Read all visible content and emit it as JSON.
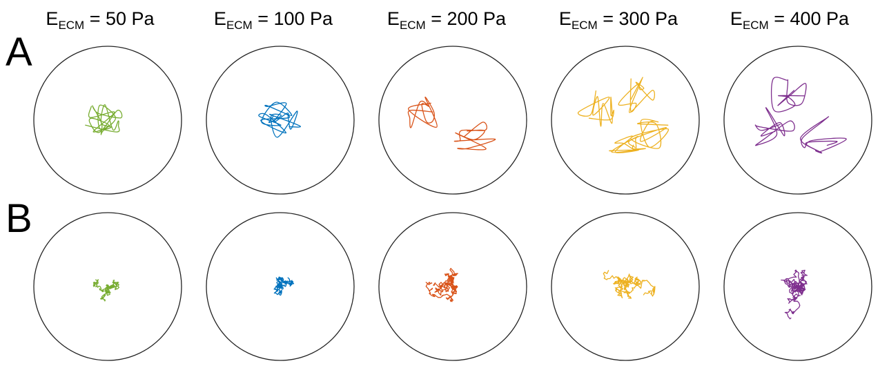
{
  "panels": [
    {
      "label": "A",
      "type": "smooth"
    },
    {
      "label": "B",
      "type": "jagged"
    }
  ],
  "columns": [
    {
      "title_main": "E",
      "title_sub": "ECM",
      "title_rest": " = 50 Pa",
      "color": "#77ac30",
      "spread_a": 0.45,
      "clusters_a": 1,
      "spread_b": 0.2
    },
    {
      "title_main": "E",
      "title_sub": "ECM",
      "title_rest": " = 100 Pa",
      "color": "#0072bd",
      "spread_a": 0.42,
      "clusters_a": 1,
      "spread_b": 0.22
    },
    {
      "title_main": "E",
      "title_sub": "ECM",
      "title_rest": " = 200 Pa",
      "color": "#d95319",
      "spread_a": 0.75,
      "clusters_a": 2,
      "spread_b": 0.38
    },
    {
      "title_main": "E",
      "title_sub": "ECM",
      "title_rest": " = 300 Pa",
      "color": "#edb120",
      "spread_a": 0.7,
      "clusters_a": 4,
      "spread_b": 0.4
    },
    {
      "title_main": "E",
      "title_sub": "ECM",
      "title_rest": " = 400 Pa",
      "color": "#7e2f8e",
      "spread_a": 0.75,
      "clusters_a": 3,
      "spread_b": 0.45
    }
  ]
}
